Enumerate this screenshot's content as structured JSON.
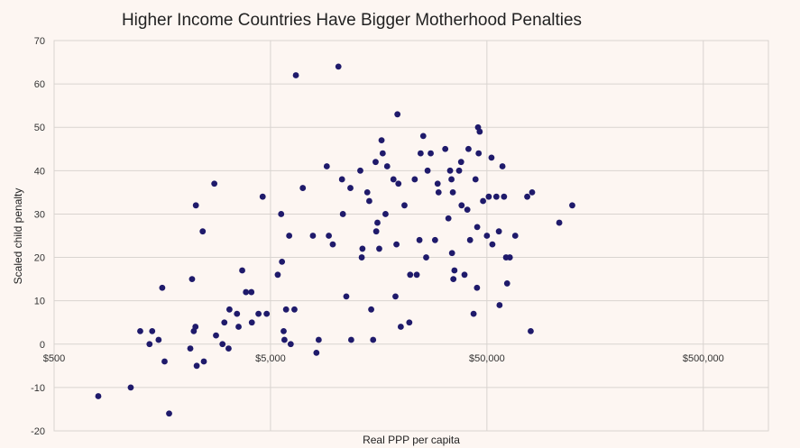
{
  "chart_data": {
    "type": "scatter",
    "title": "Higher Income Countries Have Bigger Motherhood Penalties",
    "xlabel": "Real PPP per capita",
    "ylabel": "Scaled child penalty",
    "x_scale": "log10",
    "xlim": [
      500,
      1000000
    ],
    "ylim": [
      -20,
      70
    ],
    "x_ticks": [
      500,
      5000,
      50000,
      500000
    ],
    "x_tick_labels": [
      "$500",
      "$5,000",
      "$50,000",
      "$500,000"
    ],
    "y_ticks": [
      -20,
      -10,
      0,
      10,
      20,
      30,
      40,
      50,
      60,
      70
    ],
    "y_tick_labels": [
      "-20",
      "-10",
      "0",
      "10",
      "20",
      "30",
      "40",
      "50",
      "60",
      "70"
    ],
    "marker_color": "#1f1a6b",
    "points": [
      {
        "x": 800,
        "y": -12
      },
      {
        "x": 1130,
        "y": -10
      },
      {
        "x": 1250,
        "y": 3
      },
      {
        "x": 1380,
        "y": 0
      },
      {
        "x": 1420,
        "y": 3
      },
      {
        "x": 1520,
        "y": 1
      },
      {
        "x": 1580,
        "y": 13
      },
      {
        "x": 1620,
        "y": -4
      },
      {
        "x": 1700,
        "y": -16
      },
      {
        "x": 2130,
        "y": -1
      },
      {
        "x": 2170,
        "y": 15
      },
      {
        "x": 2210,
        "y": 3
      },
      {
        "x": 2250,
        "y": 4
      },
      {
        "x": 2260,
        "y": 32
      },
      {
        "x": 2280,
        "y": -5
      },
      {
        "x": 2430,
        "y": 26
      },
      {
        "x": 2460,
        "y": -4
      },
      {
        "x": 2750,
        "y": 37
      },
      {
        "x": 2800,
        "y": 2
      },
      {
        "x": 3000,
        "y": 0
      },
      {
        "x": 3060,
        "y": 5
      },
      {
        "x": 3200,
        "y": -1
      },
      {
        "x": 3230,
        "y": 8
      },
      {
        "x": 3500,
        "y": 7
      },
      {
        "x": 3560,
        "y": 4
      },
      {
        "x": 3700,
        "y": 17
      },
      {
        "x": 3850,
        "y": 12
      },
      {
        "x": 4080,
        "y": 12
      },
      {
        "x": 4100,
        "y": 5
      },
      {
        "x": 4400,
        "y": 7
      },
      {
        "x": 4600,
        "y": 34
      },
      {
        "x": 4800,
        "y": 7
      },
      {
        "x": 5400,
        "y": 16
      },
      {
        "x": 5600,
        "y": 30
      },
      {
        "x": 5650,
        "y": 19
      },
      {
        "x": 5750,
        "y": 3
      },
      {
        "x": 5800,
        "y": 1
      },
      {
        "x": 5900,
        "y": 8
      },
      {
        "x": 6100,
        "y": 25
      },
      {
        "x": 6200,
        "y": 0
      },
      {
        "x": 6450,
        "y": 8
      },
      {
        "x": 6550,
        "y": 62
      },
      {
        "x": 7050,
        "y": 36
      },
      {
        "x": 7850,
        "y": 25
      },
      {
        "x": 8150,
        "y": -2
      },
      {
        "x": 8350,
        "y": 1
      },
      {
        "x": 9100,
        "y": 41
      },
      {
        "x": 9300,
        "y": 25
      },
      {
        "x": 9700,
        "y": 23
      },
      {
        "x": 10300,
        "y": 64
      },
      {
        "x": 10700,
        "y": 38
      },
      {
        "x": 10800,
        "y": 30
      },
      {
        "x": 11200,
        "y": 11
      },
      {
        "x": 11700,
        "y": 36
      },
      {
        "x": 11800,
        "y": 1
      },
      {
        "x": 13000,
        "y": 40
      },
      {
        "x": 13200,
        "y": 20
      },
      {
        "x": 13300,
        "y": 22
      },
      {
        "x": 14000,
        "y": 35
      },
      {
        "x": 14300,
        "y": 33
      },
      {
        "x": 14600,
        "y": 8
      },
      {
        "x": 14900,
        "y": 1
      },
      {
        "x": 15300,
        "y": 42
      },
      {
        "x": 15400,
        "y": 26
      },
      {
        "x": 15600,
        "y": 28
      },
      {
        "x": 15900,
        "y": 22
      },
      {
        "x": 16300,
        "y": 47
      },
      {
        "x": 16500,
        "y": 44
      },
      {
        "x": 17000,
        "y": 30
      },
      {
        "x": 17300,
        "y": 41
      },
      {
        "x": 18500,
        "y": 38
      },
      {
        "x": 18900,
        "y": 11
      },
      {
        "x": 19100,
        "y": 23
      },
      {
        "x": 19300,
        "y": 53
      },
      {
        "x": 19500,
        "y": 37
      },
      {
        "x": 20000,
        "y": 4
      },
      {
        "x": 20800,
        "y": 32
      },
      {
        "x": 21900,
        "y": 5
      },
      {
        "x": 22100,
        "y": 16
      },
      {
        "x": 23200,
        "y": 38
      },
      {
        "x": 23700,
        "y": 16
      },
      {
        "x": 24400,
        "y": 24
      },
      {
        "x": 24700,
        "y": 44
      },
      {
        "x": 25400,
        "y": 48
      },
      {
        "x": 26200,
        "y": 20
      },
      {
        "x": 26600,
        "y": 40
      },
      {
        "x": 27500,
        "y": 44
      },
      {
        "x": 28800,
        "y": 24
      },
      {
        "x": 29600,
        "y": 37
      },
      {
        "x": 29900,
        "y": 35
      },
      {
        "x": 32100,
        "y": 45
      },
      {
        "x": 33200,
        "y": 29
      },
      {
        "x": 33800,
        "y": 40
      },
      {
        "x": 34300,
        "y": 38
      },
      {
        "x": 34500,
        "y": 21
      },
      {
        "x": 34800,
        "y": 35
      },
      {
        "x": 35000,
        "y": 15
      },
      {
        "x": 35400,
        "y": 17
      },
      {
        "x": 37200,
        "y": 40
      },
      {
        "x": 38000,
        "y": 42
      },
      {
        "x": 38200,
        "y": 32
      },
      {
        "x": 39400,
        "y": 16
      },
      {
        "x": 40600,
        "y": 31
      },
      {
        "x": 41100,
        "y": 45
      },
      {
        "x": 41800,
        "y": 24
      },
      {
        "x": 43400,
        "y": 7
      },
      {
        "x": 44300,
        "y": 38
      },
      {
        "x": 45000,
        "y": 13
      },
      {
        "x": 45100,
        "y": 27
      },
      {
        "x": 45500,
        "y": 50
      },
      {
        "x": 45800,
        "y": 44
      },
      {
        "x": 46300,
        "y": 49
      },
      {
        "x": 48000,
        "y": 33
      },
      {
        "x": 50000,
        "y": 25
      },
      {
        "x": 51000,
        "y": 34
      },
      {
        "x": 52500,
        "y": 43
      },
      {
        "x": 53000,
        "y": 23
      },
      {
        "x": 55300,
        "y": 34
      },
      {
        "x": 56800,
        "y": 26
      },
      {
        "x": 57200,
        "y": 9
      },
      {
        "x": 59000,
        "y": 41
      },
      {
        "x": 60000,
        "y": 34
      },
      {
        "x": 61300,
        "y": 20
      },
      {
        "x": 62000,
        "y": 14
      },
      {
        "x": 63800,
        "y": 20
      },
      {
        "x": 67600,
        "y": 25
      },
      {
        "x": 76800,
        "y": 34
      },
      {
        "x": 79700,
        "y": 3
      },
      {
        "x": 80900,
        "y": 35
      },
      {
        "x": 108000,
        "y": 28
      },
      {
        "x": 124000,
        "y": 32
      }
    ]
  }
}
